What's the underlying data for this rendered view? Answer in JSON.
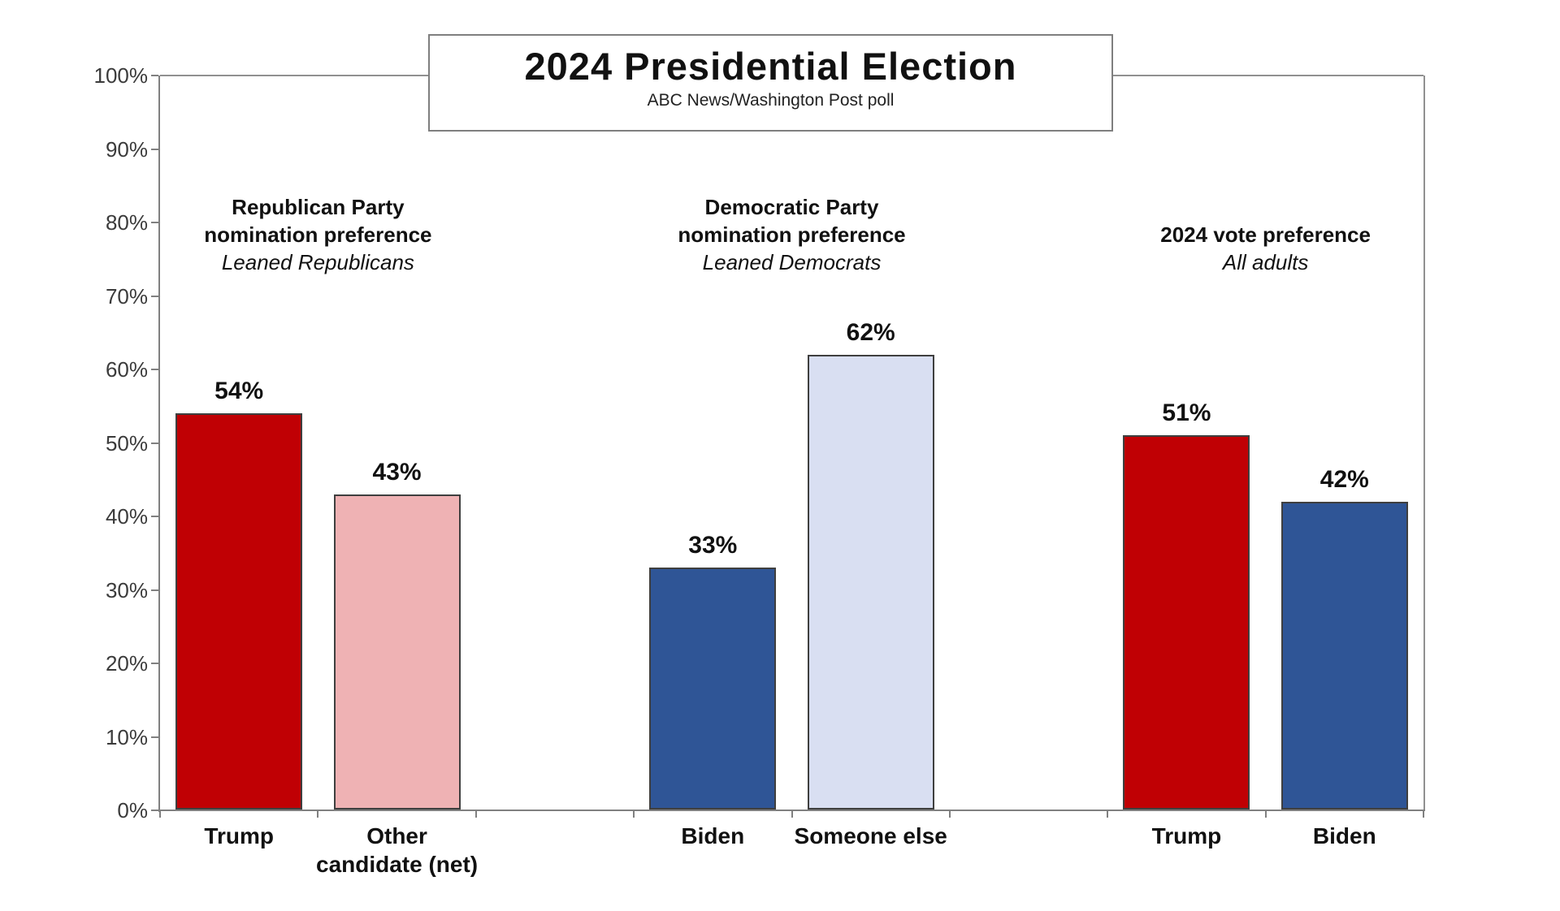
{
  "title_box": {
    "title": "2024 Presidential Election",
    "subtitle": "ABC News/Washington Post poll"
  },
  "colors": {
    "background": "#ffffff",
    "axis": "#808080",
    "frame": "#909090",
    "bar_border": "#3f3f3f",
    "text": "#111111",
    "y_label_text": "#3b3b3b",
    "title_box_border": "#7f7f7f",
    "dark_red": "#c00004",
    "light_pink": "#efb2b4",
    "dark_blue": "#2f5596",
    "light_blue": "#d9dff2"
  },
  "chart_data": {
    "type": "bar",
    "title": "2024 Presidential Election",
    "subtitle": "ABC News/Washington Post poll",
    "xlabel": "",
    "ylabel": "",
    "ylim": [
      0,
      100
    ],
    "y_tick_values": [
      0,
      10,
      20,
      30,
      40,
      50,
      60,
      70,
      80,
      90,
      100
    ],
    "y_tick_labels": [
      "0%",
      "10%",
      "20%",
      "30%",
      "40%",
      "50%",
      "60%",
      "70%",
      "80%",
      "90%",
      "100%"
    ],
    "gridlines": false,
    "legend": false,
    "categories": [
      "Trump",
      "Other candidate (net)",
      "Biden",
      "Someone else",
      "Trump",
      "Biden"
    ],
    "values": [
      54,
      43,
      33,
      62,
      51,
      42
    ],
    "groups": [
      {
        "header_lines": [
          "Republican Party",
          "nomination preference"
        ],
        "header_note": "Leaned Republicans",
        "bars": [
          {
            "category": "Trump",
            "label_lines": [
              "Trump"
            ],
            "value": 54,
            "value_label": "54%",
            "color": "#c00004",
            "color_name": "dark-red"
          },
          {
            "category": "Other candidate (net)",
            "label_lines": [
              "Other",
              "candidate (net)"
            ],
            "value": 43,
            "value_label": "43%",
            "color": "#efb2b4",
            "color_name": "light-pink"
          }
        ]
      },
      {
        "header_lines": [
          "Democratic Party",
          "nomination preference"
        ],
        "header_note": "Leaned Democrats",
        "bars": [
          {
            "category": "Biden",
            "label_lines": [
              "Biden"
            ],
            "value": 33,
            "value_label": "33%",
            "color": "#2f5596",
            "color_name": "dark-blue"
          },
          {
            "category": "Someone else",
            "label_lines": [
              "Someone else"
            ],
            "value": 62,
            "value_label": "62%",
            "color": "#d9dff2",
            "color_name": "light-blue"
          }
        ]
      },
      {
        "header_lines": [
          "2024 vote preference"
        ],
        "header_note": "All adults",
        "bars": [
          {
            "category": "Trump",
            "label_lines": [
              "Trump"
            ],
            "value": 51,
            "value_label": "51%",
            "color": "#c00004",
            "color_name": "dark-red"
          },
          {
            "category": "Biden",
            "label_lines": [
              "Biden"
            ],
            "value": 42,
            "value_label": "42%",
            "color": "#2f5596",
            "color_name": "dark-blue"
          }
        ]
      }
    ]
  }
}
